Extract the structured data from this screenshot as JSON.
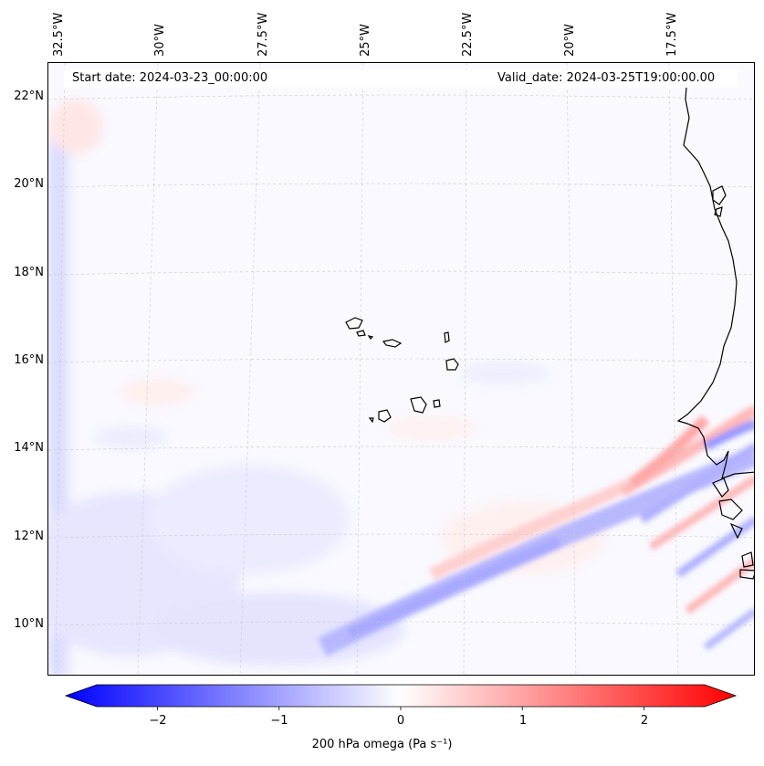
{
  "map": {
    "lon_labels": [
      "32.5°W",
      "30°W",
      "27.5°W",
      "25°W",
      "22.5°W",
      "20°W",
      "17.5°W"
    ],
    "lat_labels": [
      "22°N",
      "20°N",
      "18°N",
      "16°N",
      "14°N",
      "12°N",
      "10°N"
    ]
  },
  "header": {
    "start_date": "Start date: 2024-03-23_00:00:00",
    "valid_date": "Valid_date: 2024-03-25T19:00:00.00"
  },
  "colorbar": {
    "label": "200 hPa omega (Pa s⁻¹)",
    "ticks": [
      "−2",
      "−1",
      "0",
      "1",
      "2"
    ],
    "tick_values": [
      -2,
      -1,
      0,
      1,
      2
    ],
    "range": [
      -2.5,
      2.5
    ],
    "colors": {
      "negative": "#0000ff",
      "zero": "#ffffff",
      "positive": "#ff0000"
    }
  }
}
